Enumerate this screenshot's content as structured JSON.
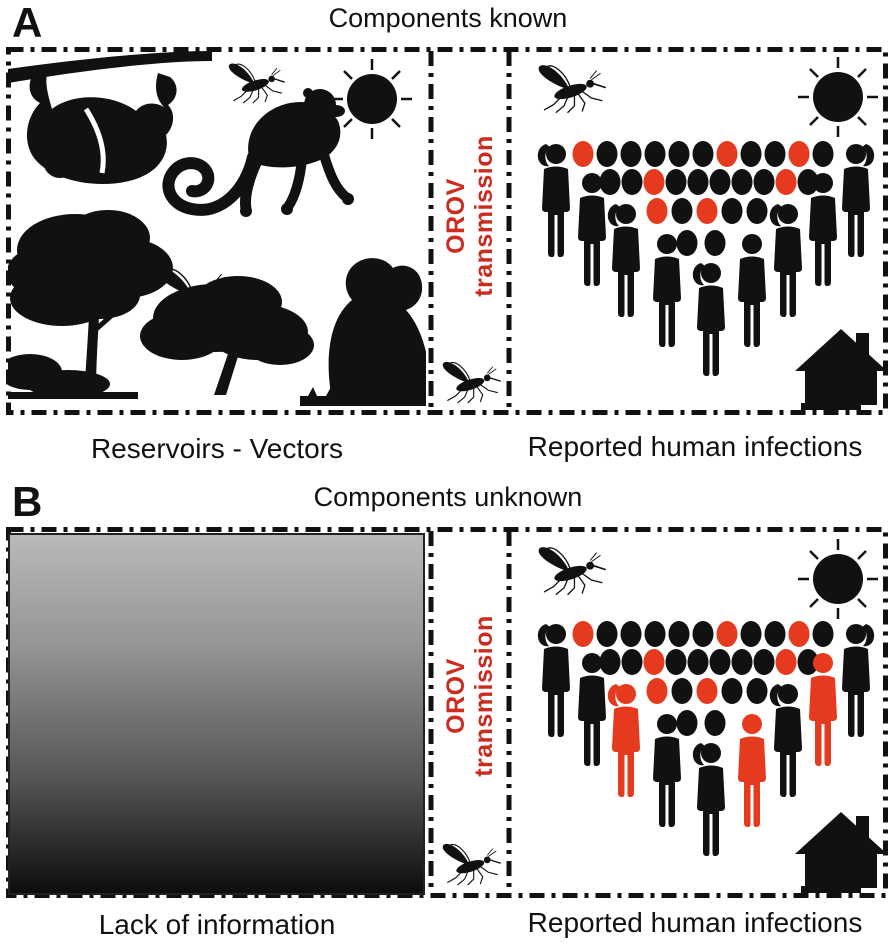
{
  "figure": {
    "background": "#ffffff",
    "colors": {
      "black": "#111111",
      "red": "#e63a1e",
      "text_red": "#cc2b20"
    }
  },
  "panel_a": {
    "label": "A",
    "title": "Components known",
    "left_box": {
      "caption": "Reservoirs - Vectors",
      "icons": [
        "tree-branch-icon",
        "hanging-sloth-icon",
        "midge-icon",
        "sun-icon",
        "spider-monkey-icon",
        "forest-trees-icon",
        "mosquito-icon",
        "sitting-monkey-icon"
      ]
    },
    "gutter": {
      "line1": "OROV",
      "line2": "transmission",
      "icon": "mosquito-icon"
    },
    "right_box": {
      "caption": "Reported human infections",
      "icons": [
        "mosquito-icon",
        "sun-icon",
        "house-icon"
      ],
      "dot_rows": [
        [
          "red",
          "black",
          "black",
          "black",
          "black",
          "black",
          "red",
          "black",
          "black",
          "red",
          "black"
        ],
        [
          "black",
          "black",
          "red",
          "black",
          "black",
          "black",
          "black",
          "black",
          "red",
          "black"
        ],
        [
          "red",
          "black",
          "red",
          "black",
          "black"
        ],
        [
          "black",
          "black"
        ]
      ],
      "people": [
        {
          "type": "woman",
          "color": "black"
        },
        {
          "type": "man",
          "color": "black"
        },
        {
          "type": "woman",
          "color": "black"
        },
        {
          "type": "man",
          "color": "black"
        },
        {
          "type": "woman",
          "color": "black"
        },
        {
          "type": "man",
          "color": "black"
        },
        {
          "type": "woman",
          "color": "black"
        },
        {
          "type": "man",
          "color": "black"
        },
        {
          "type": "woman",
          "color": "black"
        }
      ]
    }
  },
  "panel_b": {
    "label": "B",
    "title": "Components unknown",
    "left_box": {
      "caption": "Lack of information",
      "gradient_top": "#b9b9b9",
      "gradient_bottom": "#0d0d0d"
    },
    "gutter": {
      "line1": "OROV",
      "line2": "transmission",
      "icon": "mosquito-icon"
    },
    "right_box": {
      "caption": "Reported human infections",
      "icons": [
        "mosquito-icon",
        "sun-icon",
        "house-icon"
      ],
      "dot_rows": [
        [
          "red",
          "black",
          "black",
          "black",
          "black",
          "black",
          "red",
          "black",
          "black",
          "red",
          "black"
        ],
        [
          "black",
          "black",
          "red",
          "black",
          "black",
          "black",
          "black",
          "black",
          "red",
          "black"
        ],
        [
          "red",
          "black",
          "red",
          "black",
          "black"
        ],
        [
          "black",
          "black"
        ]
      ],
      "people": [
        {
          "type": "woman",
          "color": "black"
        },
        {
          "type": "man",
          "color": "black"
        },
        {
          "type": "woman",
          "color": "red"
        },
        {
          "type": "man",
          "color": "black"
        },
        {
          "type": "woman",
          "color": "black"
        },
        {
          "type": "man",
          "color": "red"
        },
        {
          "type": "woman",
          "color": "black"
        },
        {
          "type": "man",
          "color": "red"
        },
        {
          "type": "woman",
          "color": "black"
        }
      ]
    }
  }
}
